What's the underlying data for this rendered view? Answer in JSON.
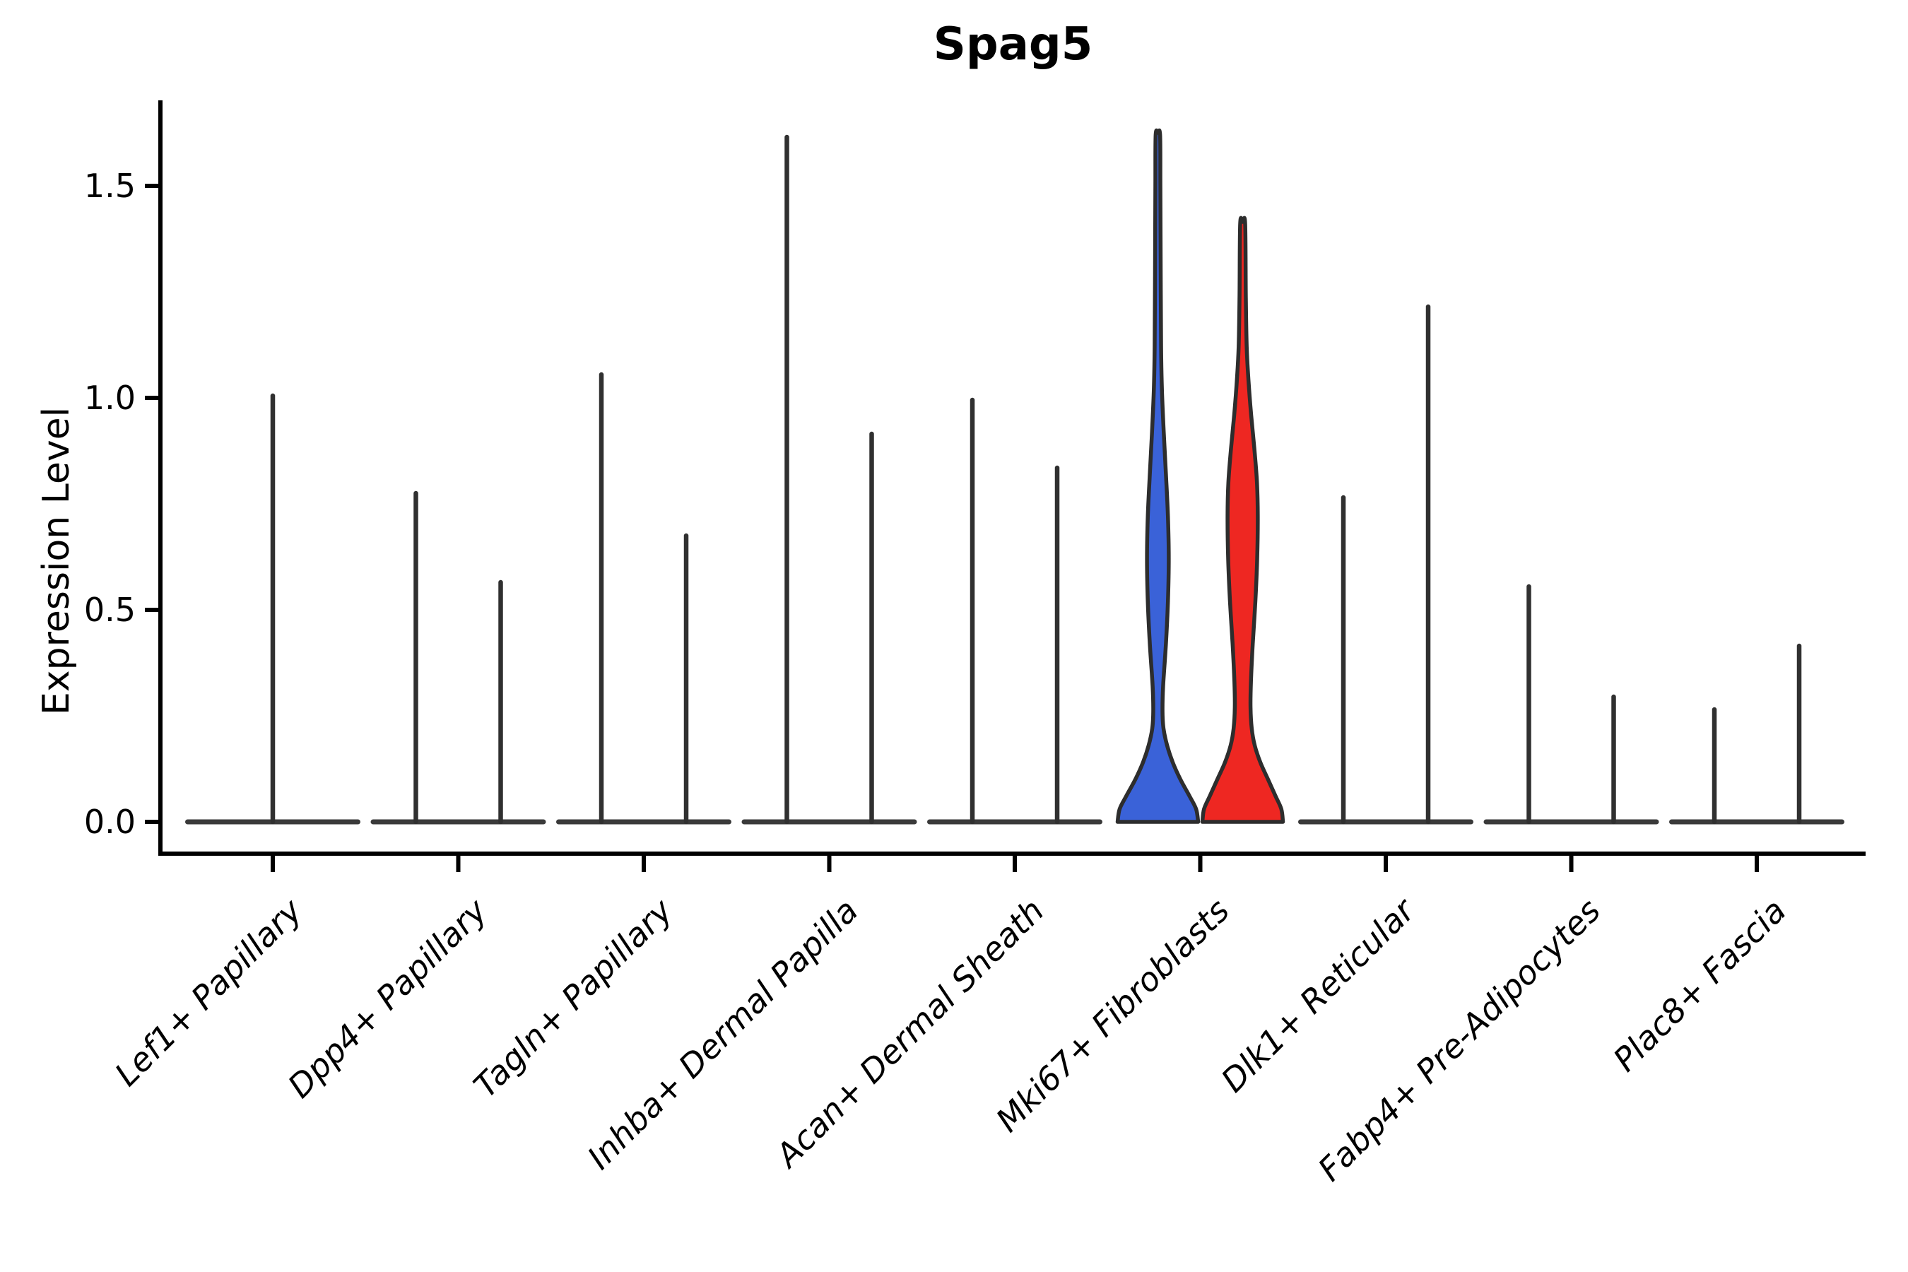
{
  "figure": {
    "title": "Spag5"
  },
  "chart_data": {
    "type": "violin",
    "title": "Spag5",
    "xlabel": "",
    "ylabel": "Expression Level",
    "ylim": [
      -0.08,
      1.7
    ],
    "grid": false,
    "legend": "none",
    "yticks": [
      {
        "value": 0.0,
        "label": "0.0"
      },
      {
        "value": 0.5,
        "label": "0.5"
      },
      {
        "value": 1.0,
        "label": "1.0"
      },
      {
        "value": 1.5,
        "label": "1.5"
      }
    ],
    "split_colors": {
      "left": "#3a62d8",
      "right": "#ee2722"
    },
    "categories": [
      {
        "label": "Lef1+ Papillary",
        "violins": [
          {
            "offset": 0,
            "max": 1.01,
            "style": "line"
          }
        ]
      },
      {
        "label": "Dpp4+ Papillary",
        "violins": [
          {
            "offset": -1,
            "max": 0.78,
            "style": "line"
          },
          {
            "offset": 1,
            "max": 0.57,
            "style": "line"
          }
        ]
      },
      {
        "label": "Tagln+ Papillary",
        "violins": [
          {
            "offset": -1,
            "max": 1.06,
            "style": "line"
          },
          {
            "offset": 1,
            "max": 0.68,
            "style": "line"
          }
        ]
      },
      {
        "label": "Inhba+ Dermal Papilla",
        "violins": [
          {
            "offset": -1,
            "max": 1.62,
            "style": "line"
          },
          {
            "offset": 1,
            "max": 0.92,
            "style": "line"
          }
        ]
      },
      {
        "label": "Acan+ Dermal Sheath",
        "violins": [
          {
            "offset": -1,
            "max": 1.0,
            "style": "line"
          },
          {
            "offset": 1,
            "max": 0.84,
            "style": "line"
          }
        ]
      },
      {
        "label": "Mki67+ Fibroblasts",
        "violins": [
          {
            "offset": -1,
            "max": 1.62,
            "style": "density",
            "fill": "#3a62d8",
            "profile": [
              [
                0,
                1.0
              ],
              [
                0.03,
                0.95
              ],
              [
                0.06,
                0.79
              ],
              [
                0.1,
                0.56
              ],
              [
                0.14,
                0.37
              ],
              [
                0.18,
                0.23
              ],
              [
                0.22,
                0.14
              ],
              [
                0.26,
                0.115
              ],
              [
                0.32,
                0.13
              ],
              [
                0.42,
                0.2
              ],
              [
                0.52,
                0.25
              ],
              [
                0.62,
                0.27
              ],
              [
                0.72,
                0.25
              ],
              [
                0.82,
                0.2
              ],
              [
                0.92,
                0.145
              ],
              [
                1.02,
                0.1
              ],
              [
                1.12,
                0.08
              ],
              [
                1.3,
                0.07
              ],
              [
                1.5,
                0.062
              ],
              [
                1.62,
                0.055
              ]
            ]
          },
          {
            "offset": 1,
            "max": 1.41,
            "style": "density",
            "fill": "#ee2722",
            "profile": [
              [
                0,
                1.0
              ],
              [
                0.03,
                0.96
              ],
              [
                0.06,
                0.82
              ],
              [
                0.1,
                0.63
              ],
              [
                0.14,
                0.44
              ],
              [
                0.18,
                0.3
              ],
              [
                0.22,
                0.225
              ],
              [
                0.27,
                0.195
              ],
              [
                0.33,
                0.205
              ],
              [
                0.42,
                0.25
              ],
              [
                0.52,
                0.315
              ],
              [
                0.62,
                0.36
              ],
              [
                0.72,
                0.375
              ],
              [
                0.8,
                0.355
              ],
              [
                0.88,
                0.29
              ],
              [
                0.96,
                0.21
              ],
              [
                1.04,
                0.145
              ],
              [
                1.12,
                0.1
              ],
              [
                1.24,
                0.078
              ],
              [
                1.41,
                0.062
              ]
            ]
          }
        ]
      },
      {
        "label": "Dlk1+ Reticular",
        "violins": [
          {
            "offset": -1,
            "max": 0.77,
            "style": "line"
          },
          {
            "offset": 1,
            "max": 1.22,
            "style": "line"
          }
        ]
      },
      {
        "label": "Fabp4+ Pre-Adipocytes",
        "violins": [
          {
            "offset": -1,
            "max": 0.56,
            "style": "line"
          },
          {
            "offset": 1,
            "max": 0.3,
            "style": "line"
          }
        ]
      },
      {
        "label": "Plac8+ Fascia",
        "violins": [
          {
            "offset": -1,
            "max": 0.27,
            "style": "line"
          },
          {
            "offset": 1,
            "max": 0.42,
            "style": "line"
          }
        ]
      }
    ]
  },
  "colors": {
    "axis": "#000000",
    "violin_outline": "#2d2d2d",
    "spike": "#303030",
    "baseline": "#3a3a3a",
    "background": "#ffffff"
  }
}
